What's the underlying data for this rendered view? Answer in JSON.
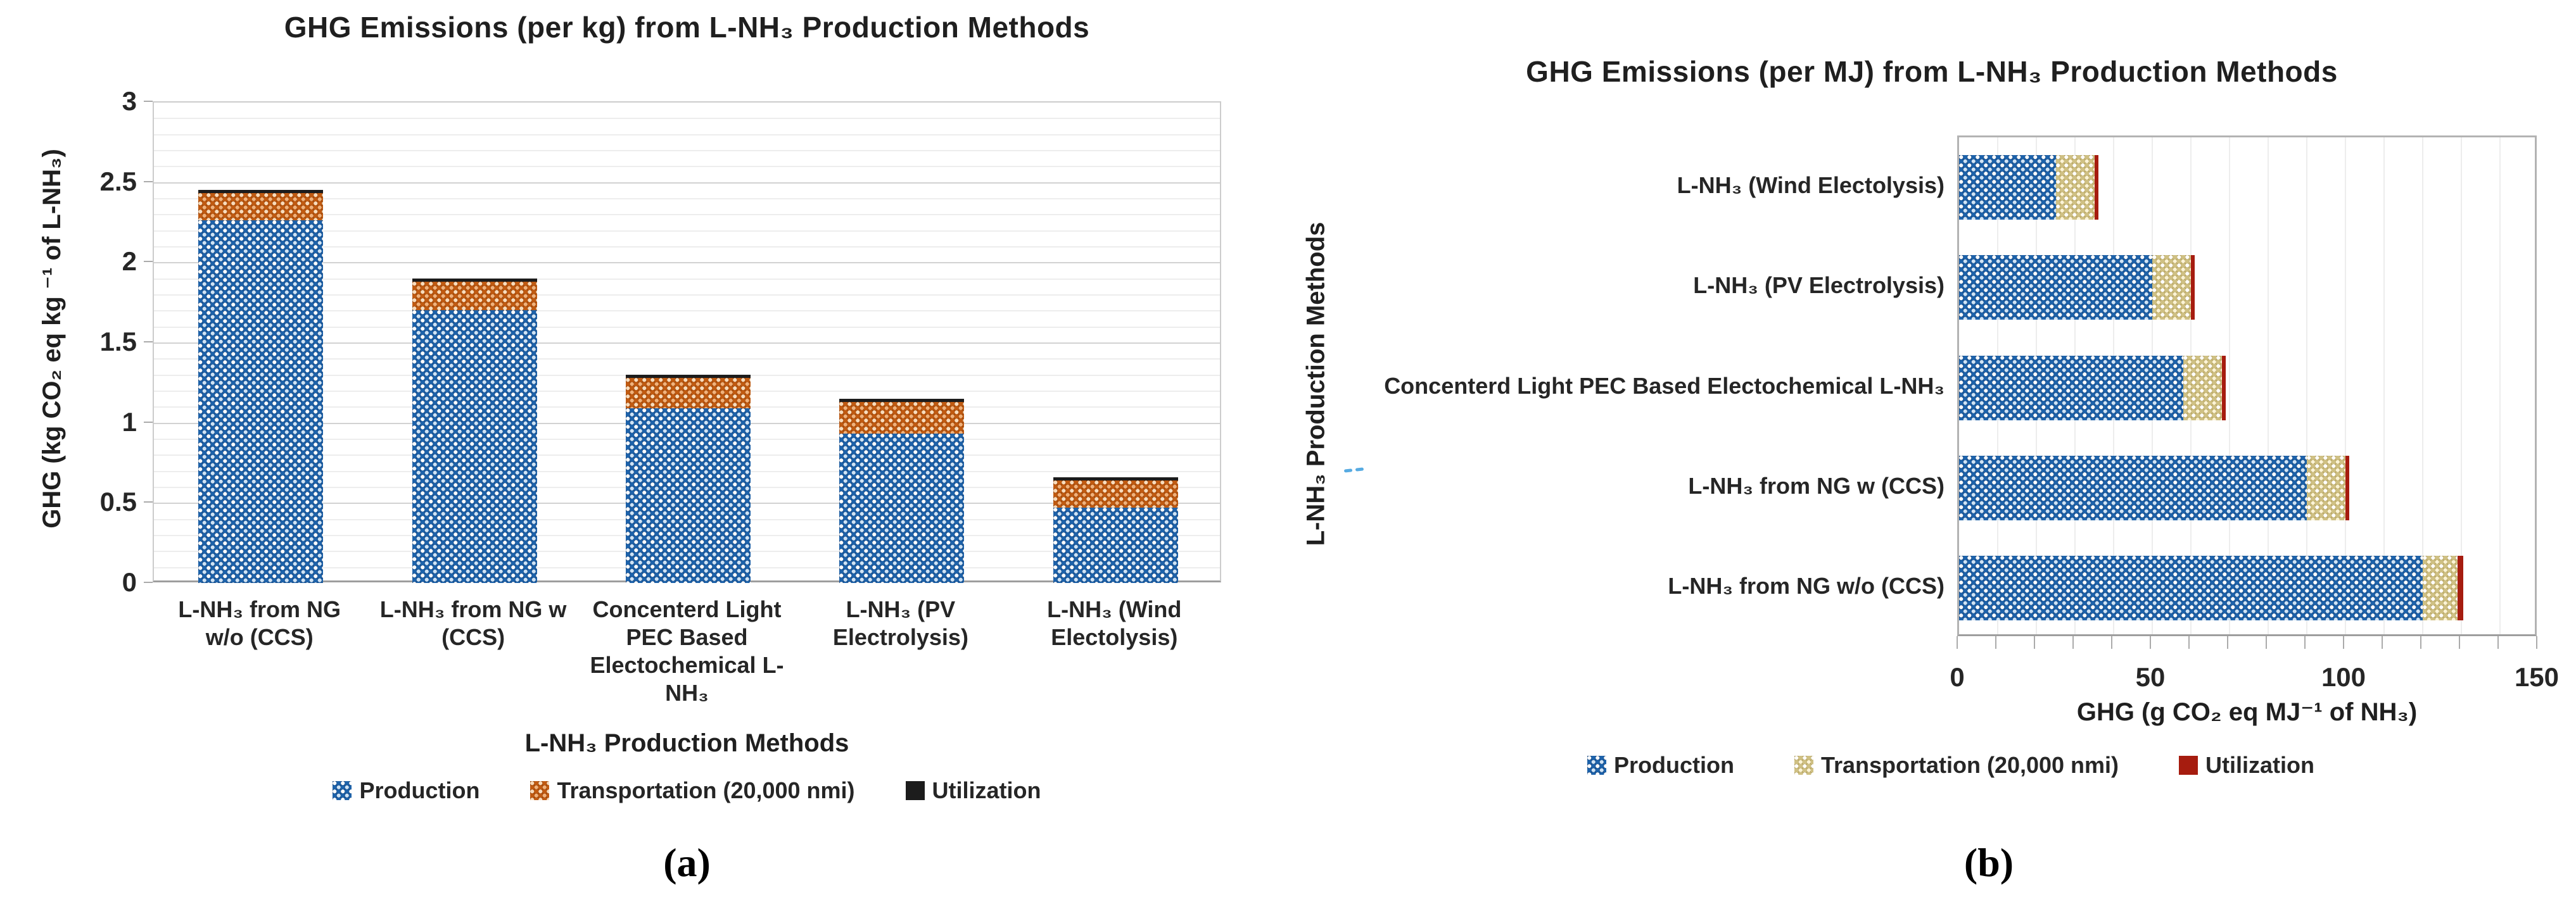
{
  "panel_labels": {
    "a": "(a)",
    "b": "(b)"
  },
  "style_colors": {
    "text": "#1f1f1f",
    "grid_minor": "#ededed",
    "grid_major": "#d2d2d2",
    "plot_border": "#c4c4c4",
    "axis_line": "#9e9e9e"
  },
  "chart_data": [
    {
      "panel": "a",
      "type": "bar",
      "orientation": "vertical",
      "stacked": true,
      "grid": "horizontal, minor 0.1 / major 0.5",
      "legend_position": "bottom",
      "title": "GHG Emissions (per kg) from L-NH₃ Production Methods",
      "xlabel": "L-NH₃ Production Methods",
      "ylabel": "GHG (kg CO₂ eq kg ⁻¹ of L-NH₃)",
      "ylim": [
        0,
        3
      ],
      "ytick_labels": [
        "0",
        "0.5",
        "1",
        "1.5",
        "2",
        "2.5",
        "3"
      ],
      "yticks": [
        0,
        0.5,
        1,
        1.5,
        2,
        2.5,
        3
      ],
      "categories": [
        "L-NH₃ from NG\nw/o (CCS)",
        "L-NH₃ from NG w\n(CCS)",
        "Concenterd Light\nPEC Based\nElectochemical L- NH₃",
        "L-NH₃ (PV\nElectrolysis)",
        "L-NH₃ (Wind\nElectolysis)"
      ],
      "series": [
        {
          "name": "Production",
          "pattern": "checker-dots",
          "fill": "#1d62aa",
          "fill2": "#0f4079",
          "dot": "#ffffff",
          "dot2": "#cfe3f5",
          "values": [
            2.26,
            1.7,
            1.09,
            0.93,
            0.47
          ]
        },
        {
          "name": "Transportation (20,000 nmi)",
          "pattern": "checker-dots",
          "fill": "#c05a11",
          "fill2": "#8f3a00",
          "dot": "#f8dcbc",
          "dot2": "#f0b27c",
          "values": [
            0.17,
            0.18,
            0.19,
            0.2,
            0.17
          ]
        },
        {
          "name": "Utilization",
          "pattern": "solid",
          "fill": "#1c1c1c",
          "values": [
            0.02,
            0.02,
            0.02,
            0.02,
            0.02
          ]
        }
      ],
      "stack_totals": [
        2.45,
        1.9,
        1.3,
        1.15,
        0.66
      ]
    },
    {
      "panel": "b",
      "type": "bar",
      "orientation": "horizontal",
      "stacked": true,
      "grid": "vertical, every 10",
      "legend_position": "bottom",
      "title": "GHG Emissions (per MJ) from L-NH₃ Production Methods",
      "xlabel": "GHG (g CO₂ eq MJ⁻¹ of NH₃)",
      "ylabel": "L-NH₃ Production Methods",
      "xlim": [
        0,
        150
      ],
      "xticks": [
        0,
        50,
        100,
        150
      ],
      "xtick_labels": [
        "0",
        "50",
        "100",
        "150"
      ],
      "grid_step": 10,
      "categories": [
        "L-NH₃ (Wind Electolysis)",
        "L-NH₃ (PV Electrolysis)",
        "Concenterd Light PEC Based Electochemical L-NH₃",
        "L-NH₃ from NG w (CCS)",
        "L-NH₃ from NG w/o (CCS)"
      ],
      "series": [
        {
          "name": "Production",
          "pattern": "checker-dots",
          "fill": "#1d62aa",
          "fill2": "#0f4079",
          "dot": "#ffffff",
          "dot2": "#cfe3f5",
          "values": [
            25,
            50,
            58,
            90,
            120
          ]
        },
        {
          "name": "Transportation (20,000 nmi)",
          "pattern": "checker-dots",
          "fill": "#cfc083",
          "fill2": "#ab9752",
          "dot": "#ffffff",
          "dot2": "#fbf3d5",
          "values": [
            10,
            10,
            10,
            10,
            9
          ]
        },
        {
          "name": "Utilization",
          "pattern": "solid",
          "fill": "#a61c0f",
          "values": [
            1,
            1,
            1,
            1,
            1.5
          ]
        }
      ],
      "stack_totals": [
        36,
        61,
        69,
        101,
        130.5
      ]
    }
  ]
}
